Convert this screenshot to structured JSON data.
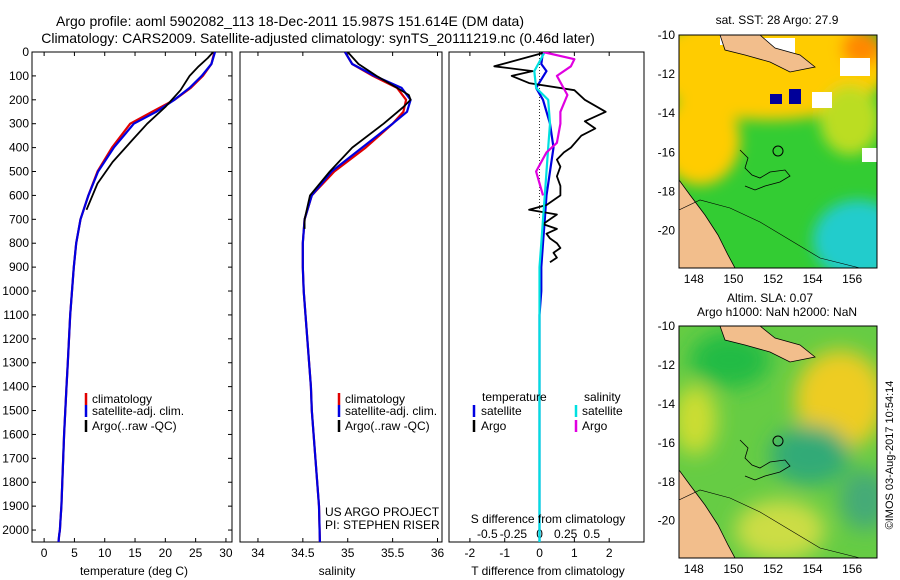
{
  "title": {
    "line1": "Argo profile: aoml 5902082_113 18-Dec-2011 15.987S 151.614E (DM data)",
    "line2": "Climatology: CARS2009. Satellite-adjusted climatology: synTS_20111219.nc (0.46d later)"
  },
  "colors": {
    "climatology": "#e00000",
    "satellite": "#0000e0",
    "argo": "#000000",
    "sat_salinity": "#00e0e0",
    "argo_salinity": "#e000e0",
    "land": "#f2be8c",
    "ocean_green": "#33cc33",
    "ocean_warm": "#ffcc00",
    "ocean_cyan": "#22cccc",
    "ocean_navy": "#000099",
    "ocean_gap": "#ffffff"
  },
  "chart_data": [
    {
      "id": "temperature",
      "type": "line",
      "xlabel": "temperature (deg C)",
      "ylabel": "",
      "xlim": [
        -2,
        31
      ],
      "ylim": [
        0,
        2050
      ],
      "xticks": [
        0,
        5,
        10,
        15,
        20,
        25,
        30
      ],
      "yticks": [
        0,
        100,
        200,
        300,
        400,
        500,
        600,
        700,
        800,
        900,
        1000,
        1100,
        1200,
        1300,
        1400,
        1500,
        1600,
        1700,
        1800,
        1900,
        2000
      ],
      "y_inverted": true,
      "legend": [
        "climatology",
        "satellite-adj. clim.",
        "Argo(..raw -QC)"
      ],
      "series": [
        {
          "name": "climatology",
          "color": "#e00000",
          "x": [
            28.1,
            27.6,
            26.2,
            24.2,
            21.5,
            17.8,
            14.2,
            11.2,
            8.8,
            7.3,
            6.0,
            5.3,
            4.9,
            4.6,
            4.3,
            4.1,
            3.9,
            3.7,
            3.5,
            3.3,
            3.15,
            3.0,
            2.85,
            2.72,
            2.6,
            2.48,
            2.38
          ],
          "y": [
            0,
            50,
            100,
            150,
            200,
            250,
            300,
            400,
            500,
            600,
            700,
            800,
            900,
            1000,
            1100,
            1200,
            1300,
            1400,
            1500,
            1600,
            1700,
            1800,
            1900,
            1950,
            2000,
            2020,
            2050
          ]
        },
        {
          "name": "satellite",
          "color": "#0000e0",
          "x": [
            28.2,
            27.6,
            26.0,
            24.0,
            21.5,
            18.5,
            14.8,
            11.5,
            8.9,
            7.3,
            6.0,
            5.3,
            4.9,
            4.6,
            4.3,
            4.1,
            3.9,
            3.7,
            3.5,
            3.3,
            3.15,
            3.0,
            2.85,
            2.72,
            2.6,
            2.48,
            2.38
          ],
          "y": [
            0,
            50,
            100,
            150,
            200,
            250,
            300,
            400,
            500,
            600,
            700,
            800,
            900,
            1000,
            1100,
            1200,
            1300,
            1400,
            1500,
            1600,
            1700,
            1800,
            1900,
            1950,
            2000,
            2020,
            2050
          ]
        },
        {
          "name": "Argo",
          "color": "#000000",
          "x": [
            27.9,
            27.0,
            25.5,
            24.0,
            22.5,
            20.0,
            17.0,
            14.5,
            11.3,
            8.8,
            7.0
          ],
          "y": [
            0,
            25,
            60,
            100,
            160,
            230,
            300,
            370,
            460,
            550,
            660
          ]
        }
      ]
    },
    {
      "id": "salinity",
      "type": "line",
      "xlabel": "salinity",
      "ylabel": "",
      "xlim": [
        33.8,
        36.05
      ],
      "ylim": [
        0,
        2050
      ],
      "xticks": [
        34,
        34.5,
        35,
        35.5,
        36
      ],
      "xticklabels": [
        "34",
        "34.5",
        "35",
        "35.5",
        "36"
      ],
      "y_inverted": true,
      "legend": [
        "climatology",
        "satellite-adj. clim.",
        "Argo(..raw -QC)"
      ],
      "series": [
        {
          "name": "climatology",
          "color": "#e00000",
          "x": [
            34.97,
            35.05,
            35.28,
            35.55,
            35.65,
            35.62,
            35.5,
            35.2,
            34.85,
            34.6,
            34.52,
            34.5,
            34.5,
            34.51,
            34.53,
            34.55,
            34.57,
            34.59,
            34.6,
            34.62,
            34.64,
            34.66,
            34.68,
            34.69
          ],
          "y": [
            0,
            50,
            100,
            150,
            200,
            250,
            300,
            400,
            500,
            600,
            700,
            800,
            900,
            1000,
            1100,
            1200,
            1300,
            1400,
            1500,
            1600,
            1700,
            1800,
            1900,
            2050
          ]
        },
        {
          "name": "satellite",
          "color": "#0000e0",
          "x": [
            34.97,
            35.05,
            35.3,
            35.6,
            35.7,
            35.66,
            35.5,
            35.16,
            34.82,
            34.6,
            34.52,
            34.5,
            34.5,
            34.51,
            34.53,
            34.55,
            34.57,
            34.59,
            34.6,
            34.62,
            34.64,
            34.66,
            34.68,
            34.69
          ],
          "y": [
            0,
            50,
            100,
            150,
            200,
            250,
            300,
            400,
            500,
            600,
            700,
            800,
            900,
            1000,
            1100,
            1200,
            1300,
            1400,
            1500,
            1600,
            1700,
            1800,
            1900,
            2050
          ]
        },
        {
          "name": "Argo",
          "color": "#000000",
          "x": [
            35.0,
            35.12,
            35.32,
            35.55,
            35.68,
            35.7,
            35.62,
            35.4,
            35.05,
            34.8,
            34.58,
            34.52,
            34.52
          ],
          "y": [
            0,
            50,
            100,
            150,
            180,
            200,
            230,
            300,
            400,
            500,
            600,
            700,
            740
          ]
        }
      ]
    },
    {
      "id": "difference",
      "type": "line",
      "xlabel": "T difference from climatology",
      "xlabel_top": "S difference from climatology",
      "xlim": [
        -2.6,
        3.0
      ],
      "ylim": [
        0,
        2050
      ],
      "xticks": [
        -2,
        -1,
        0,
        1,
        2
      ],
      "xticklabels": [
        "-2",
        "-1",
        "0",
        "1",
        "2"
      ],
      "sticks": [
        -1.5,
        -0.75,
        0.0,
        0.75,
        1.5
      ],
      "sticklabels": [
        "-0.5",
        "-0.25",
        "0",
        "0.25",
        "0.5"
      ],
      "y_inverted": true,
      "legend_left_title": "temperature",
      "legend_right_title": "salinity",
      "legend": [
        "satellite",
        "Argo",
        "satellite",
        "Argo"
      ],
      "series": [
        {
          "name": "T satellite",
          "color": "#0000e0",
          "x": [
            0.1,
            0.05,
            0.2,
            -0.1,
            0.1,
            0.3,
            0.4,
            0.3,
            0.2,
            0.15,
            0.1,
            0.05,
            0.05,
            0.0,
            0.0,
            0.0,
            0.0,
            0.0,
            0.0,
            0.0,
            0.0,
            0.0,
            0.0
          ],
          "y": [
            0,
            50,
            80,
            150,
            200,
            300,
            400,
            500,
            600,
            700,
            800,
            900,
            1000,
            1100,
            1200,
            1300,
            1400,
            1500,
            1600,
            1700,
            1800,
            1900,
            2050
          ]
        },
        {
          "name": "T Argo",
          "color": "#000000",
          "x": [
            0.2,
            -1.3,
            -0.2,
            -0.8,
            -0.3,
            1.0,
            1.3,
            1.9,
            1.3,
            1.6,
            1.2,
            0.9,
            0.7,
            0.5,
            0.6,
            0.5,
            0.6,
            0.6,
            0.2,
            -0.3,
            0.5,
            0.3,
            0.1,
            0.5,
            0.2,
            0.3,
            0.5,
            0.6,
            0.4,
            0.5,
            0.3
          ],
          "y": [
            0,
            60,
            80,
            100,
            130,
            160,
            200,
            250,
            290,
            320,
            350,
            400,
            420,
            450,
            480,
            520,
            560,
            600,
            640,
            660,
            680,
            700,
            720,
            740,
            760,
            780,
            800,
            820,
            840,
            860,
            880
          ]
        },
        {
          "name": "S satellite",
          "color": "#00e0e0",
          "x": [
            0.15,
            -0.15,
            -0.1,
            0.25,
            0.3,
            0.25,
            0.2,
            0.15,
            0.1,
            0.05,
            0.0,
            0.0,
            0.0,
            0.0,
            0.0,
            0.0,
            0.0,
            0.0,
            0.0,
            0.0,
            0.0
          ],
          "y": [
            0,
            80,
            150,
            200,
            300,
            400,
            500,
            600,
            700,
            800,
            900,
            1000,
            1100,
            1200,
            1300,
            1400,
            1500,
            1600,
            1700,
            1800,
            2050
          ]
        },
        {
          "name": "S Argo",
          "color": "#e000e0",
          "x": [
            0.1,
            1.0,
            0.9,
            0.5,
            0.8,
            0.6,
            0.6,
            0.5,
            0.2,
            -0.1,
            0.1
          ],
          "y": [
            0,
            30,
            60,
            100,
            180,
            250,
            300,
            380,
            420,
            500,
            600
          ]
        }
      ]
    }
  ],
  "map_top": {
    "title": "sat. SST: 28 Argo: 27.9",
    "xticks": [
      "148",
      "150",
      "152",
      "154",
      "156"
    ],
    "yticks": [
      "-10",
      "-12",
      "-14",
      "-16",
      "-18",
      "-20"
    ]
  },
  "map_bottom": {
    "title_line1": "Altim. SLA: 0.07",
    "title_line2": "Argo h1000: NaN h2000: NaN",
    "xticks": [
      "148",
      "150",
      "152",
      "154",
      "156"
    ],
    "yticks": [
      "-10",
      "-12",
      "-14",
      "-16",
      "-18",
      "-20"
    ]
  },
  "credits": {
    "project": "US ARGO PROJECT",
    "pi": "PI: STEPHEN RISER",
    "imos": "©IMOS 03-Aug-2017 10:54:14"
  }
}
